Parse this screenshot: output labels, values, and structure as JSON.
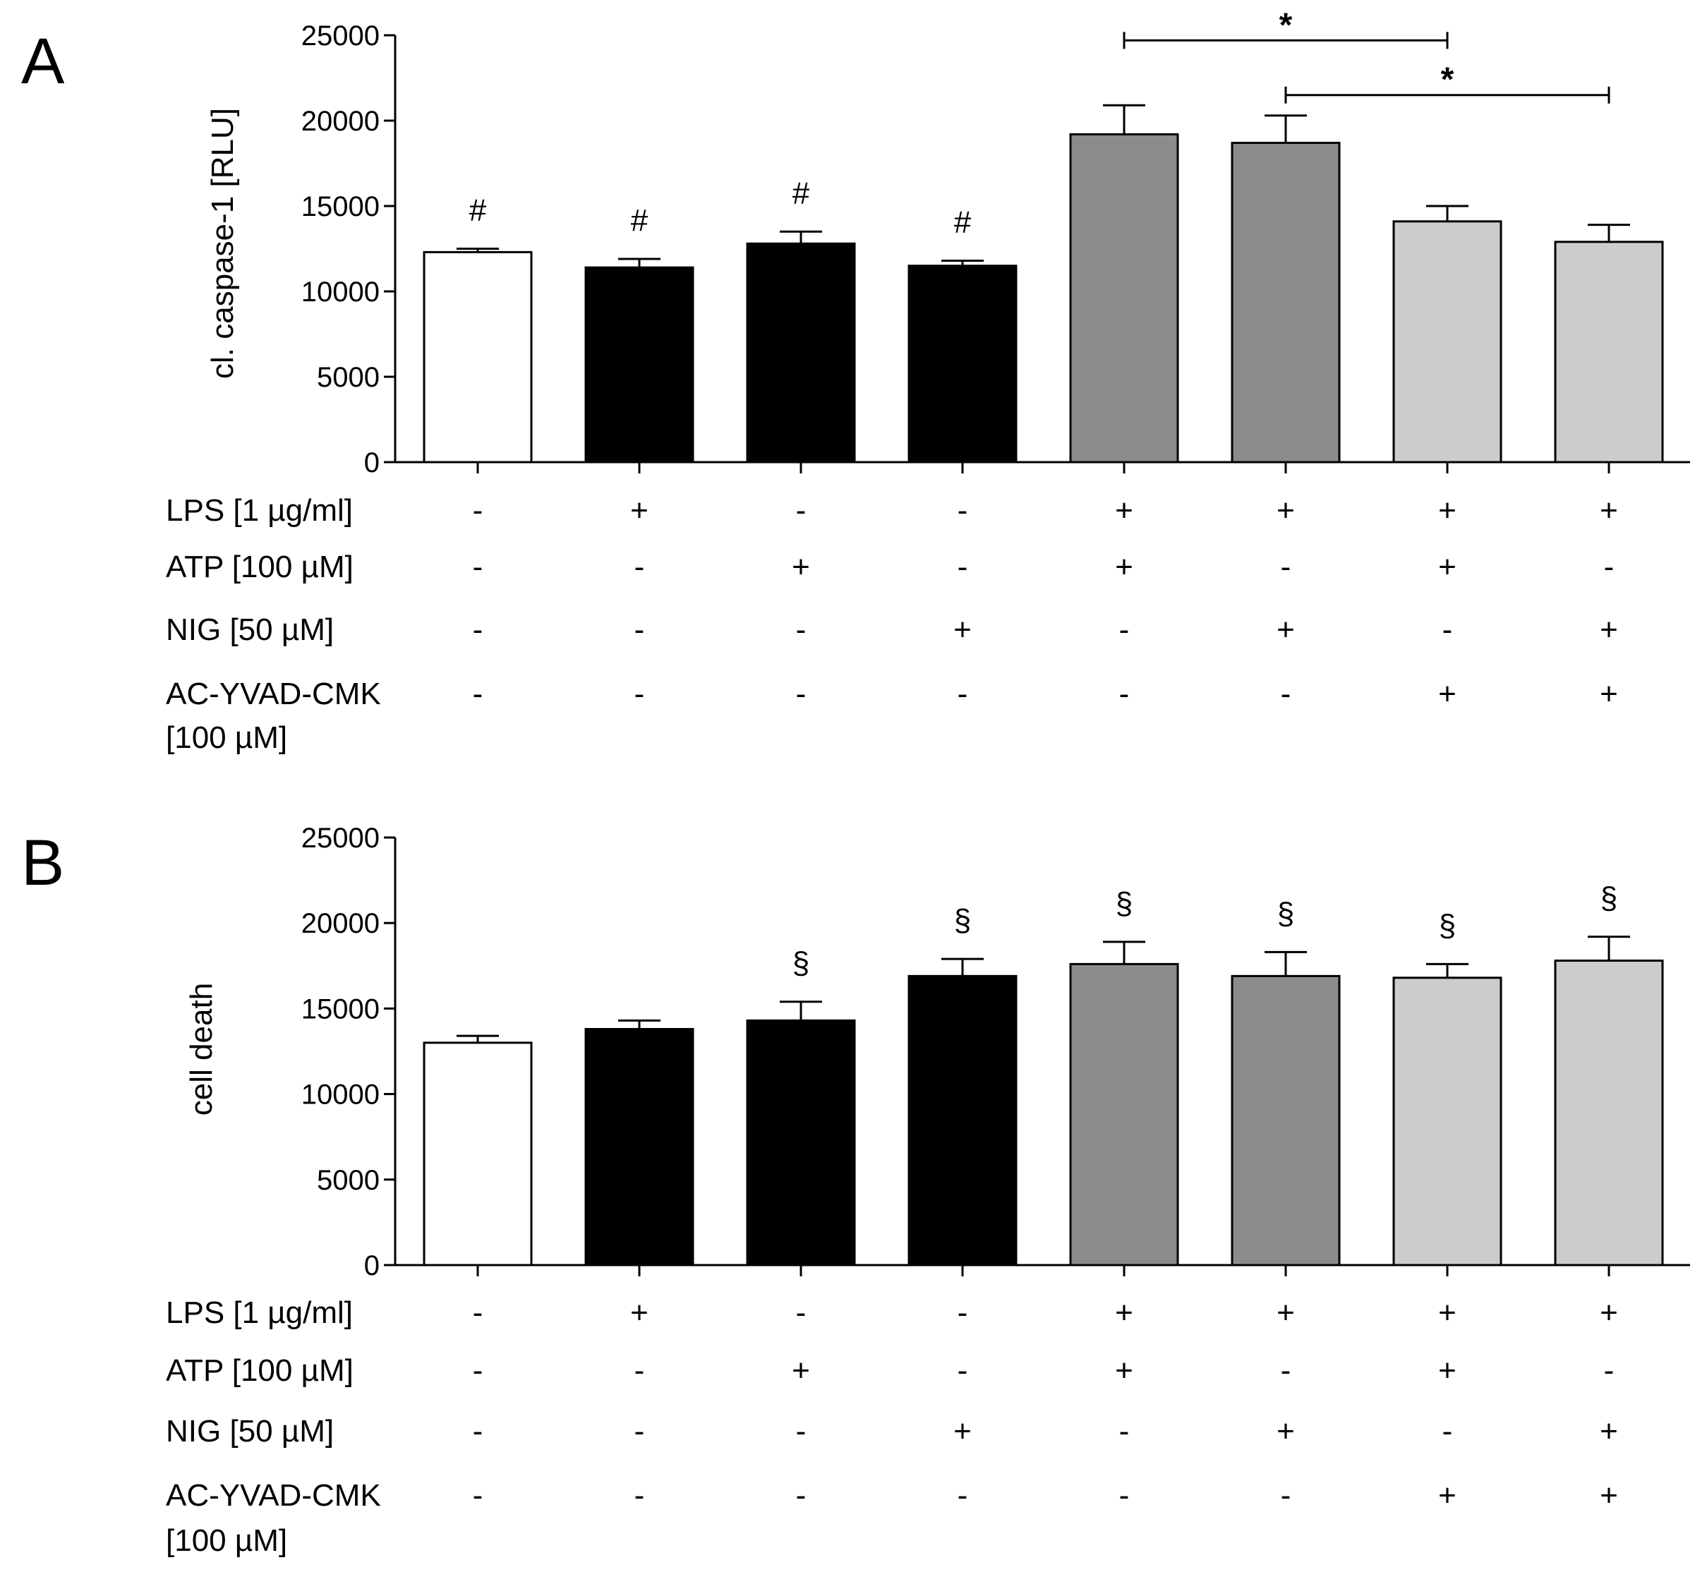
{
  "chart_data": [
    {
      "panel_label": "A",
      "type": "bar",
      "ylabel": "cl. caspase-1 [RLU]",
      "ylim": [
        0,
        25000
      ],
      "yticks": [
        0,
        5000,
        10000,
        15000,
        20000,
        25000
      ],
      "tick_labels": [
        "0",
        "5000",
        "10000",
        "15000",
        "20000",
        "25000"
      ],
      "values": [
        12300,
        11400,
        12800,
        11500,
        19200,
        18700,
        14100,
        12900
      ],
      "errors": [
        200,
        500,
        700,
        300,
        1700,
        1600,
        900,
        1000
      ],
      "colors": [
        "#ffffff",
        "#000000",
        "#000000",
        "#000000",
        "#8c8c8c",
        "#8c8c8c",
        "#cccccc",
        "#cccccc"
      ],
      "bar_annotations": [
        "#",
        "#",
        "#",
        "#",
        "",
        "",
        "",
        ""
      ],
      "significance": [
        {
          "from": 4,
          "to": 6,
          "label": "*",
          "level": 24700
        },
        {
          "from": 5,
          "to": 7,
          "label": "*",
          "level": 21500
        }
      ],
      "conditions": [
        {
          "name": "LPS [1 µg/ml]",
          "signs": [
            "-",
            "+",
            "-",
            "-",
            "+",
            "+",
            "+",
            "+"
          ]
        },
        {
          "name": "ATP [100 µM]",
          "signs": [
            "-",
            "-",
            "+",
            "-",
            "+",
            "-",
            "+",
            "-"
          ]
        },
        {
          "name": "NIG [50 µM]",
          "signs": [
            "-",
            "-",
            "-",
            "+",
            "-",
            "+",
            "-",
            "+"
          ]
        },
        {
          "name": "AC-YVAD-CMK",
          "name2": "[100 µM]",
          "signs": [
            "-",
            "-",
            "-",
            "-",
            "-",
            "-",
            "+",
            "+"
          ]
        }
      ]
    },
    {
      "panel_label": "B",
      "type": "bar",
      "ylabel": "cell death",
      "ylim": [
        0,
        25000
      ],
      "yticks": [
        0,
        5000,
        10000,
        15000,
        20000,
        25000
      ],
      "tick_labels": [
        "0",
        "5000",
        "10000",
        "15000",
        "20000",
        "25000"
      ],
      "values": [
        13000,
        13800,
        14300,
        16900,
        17600,
        16900,
        16800,
        17800
      ],
      "errors": [
        400,
        500,
        1100,
        1000,
        1300,
        1400,
        800,
        1400
      ],
      "colors": [
        "#ffffff",
        "#000000",
        "#000000",
        "#000000",
        "#8c8c8c",
        "#8c8c8c",
        "#cccccc",
        "#cccccc"
      ],
      "bar_annotations": [
        "",
        "",
        "§",
        "§",
        "§",
        "§",
        "§",
        "§"
      ],
      "significance": [],
      "conditions": [
        {
          "name": "LPS [1 µg/ml]",
          "signs": [
            "-",
            "+",
            "-",
            "-",
            "+",
            "+",
            "+",
            "+"
          ]
        },
        {
          "name": "ATP [100 µM]",
          "signs": [
            "-",
            "-",
            "+",
            "-",
            "+",
            "-",
            "+",
            "-"
          ]
        },
        {
          "name": "NIG [50 µM]",
          "signs": [
            "-",
            "-",
            "-",
            "+",
            "-",
            "+",
            "-",
            "+"
          ]
        },
        {
          "name": "AC-YVAD-CMK",
          "name2": "[100 µM]",
          "signs": [
            "-",
            "-",
            "-",
            "-",
            "-",
            "-",
            "+",
            "+"
          ]
        }
      ]
    }
  ]
}
